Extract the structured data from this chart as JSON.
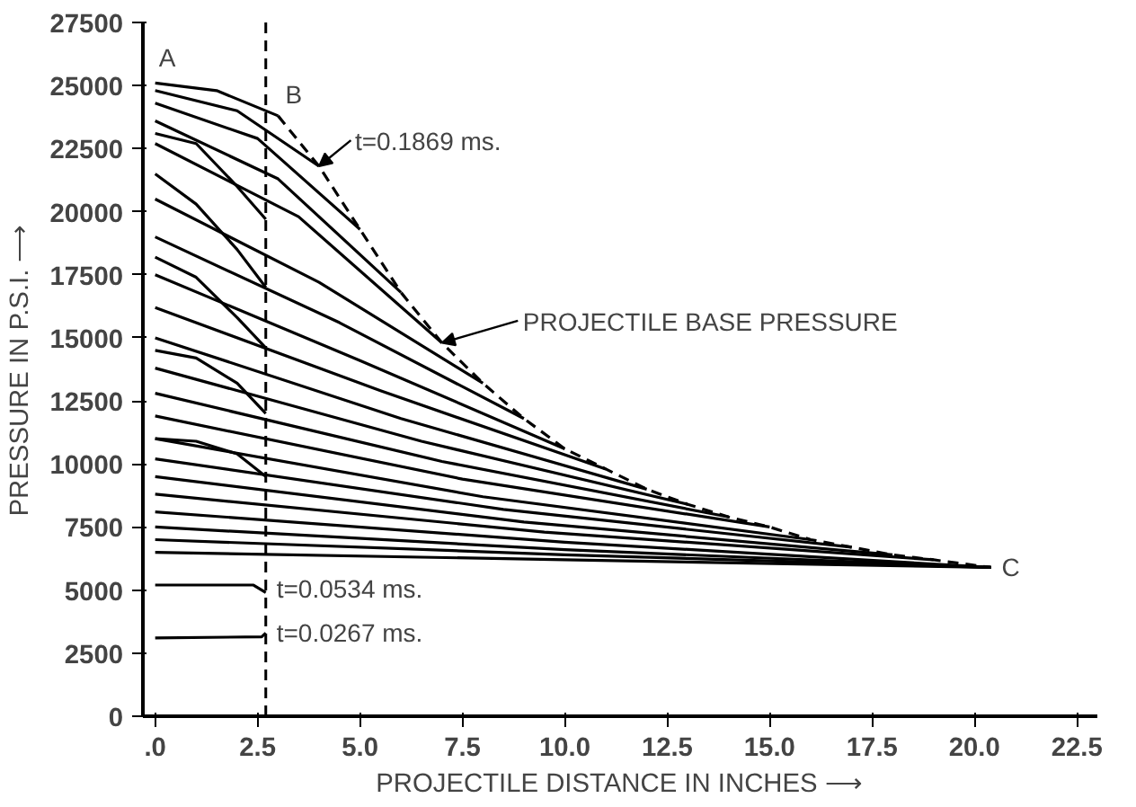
{
  "chart_data": {
    "type": "line",
    "xlabel": "PROJECTILE DISTANCE IN INCHES ⟶",
    "ylabel": "PRESSURE IN P.S.I. ⟶",
    "xlim": [
      -0.3,
      23
    ],
    "ylim": [
      0,
      27500
    ],
    "xticks": [
      {
        "value": 0,
        "label": ".0"
      },
      2.5,
      {
        "value": 5,
        "label": "5.0"
      },
      7.5,
      {
        "value": 10,
        "label": "10.0"
      },
      12.5,
      {
        "value": 15,
        "label": "15.0"
      },
      17.5,
      {
        "value": 20,
        "label": "20.0"
      },
      22.5
    ],
    "yticks": [
      0,
      2500,
      5000,
      7500,
      10000,
      12500,
      15000,
      17500,
      20000,
      22500,
      25000,
      27500
    ],
    "grid": false,
    "marker": "none",
    "line_style": "solid",
    "ref_lines": [
      {
        "axis": "x",
        "value": 2.7,
        "line_style": "dashed",
        "color": "#000000"
      }
    ],
    "annotations": [
      {
        "text": "A",
        "x": 0,
        "y": 25100
      },
      {
        "text": "B",
        "x": 3,
        "y": 23800
      },
      {
        "text": "C",
        "x": 20.4,
        "y": 5900
      },
      {
        "text": "t=0.1869 ms.",
        "x": 4,
        "y": 21800
      },
      {
        "text": "PROJECTILE BASE PRESSURE",
        "x": 7,
        "y": 14800
      },
      {
        "text": "t=0.0534 ms.",
        "x": 2.7,
        "y": 4900
      },
      {
        "text": "t=0.0267 ms.",
        "x": 2.7,
        "y": 3300
      }
    ],
    "series": [
      {
        "color": "#000000",
        "line_style": "dashed",
        "x": [
          3,
          4,
          5,
          6,
          7,
          8,
          9,
          10,
          11,
          12,
          13,
          14,
          15,
          16,
          17,
          18,
          19,
          20.4
        ],
        "values": [
          23800,
          21800,
          19300,
          16800,
          14800,
          13200,
          11800,
          10600,
          9800,
          9000,
          8400,
          7900,
          7500,
          7000,
          6700,
          6400,
          6200,
          5900
        ]
      },
      {
        "color": "#000000",
        "x": [
          0,
          2.6,
          2.7
        ],
        "values": [
          3100,
          3150,
          3300
        ]
      },
      {
        "color": "#000000",
        "x": [
          0,
          2.4,
          2.7
        ],
        "values": [
          5200,
          5200,
          4900
        ]
      },
      {
        "color": "#000000",
        "x": [
          0,
          1,
          2,
          2.7
        ],
        "values": [
          11000,
          10900,
          10400,
          9500
        ]
      },
      {
        "color": "#000000",
        "x": [
          0,
          1,
          2,
          2.7
        ],
        "values": [
          14500,
          14200,
          13200,
          12000
        ]
      },
      {
        "color": "#000000",
        "x": [
          0,
          1,
          2,
          2.7
        ],
        "values": [
          18200,
          17400,
          15800,
          14600
        ]
      },
      {
        "color": "#000000",
        "x": [
          0,
          1,
          2,
          2.7
        ],
        "values": [
          21500,
          20300,
          18500,
          17000
        ]
      },
      {
        "color": "#000000",
        "x": [
          0,
          1,
          2,
          2.7
        ],
        "values": [
          23100,
          22700,
          21000,
          19700
        ]
      },
      {
        "color": "#000000",
        "x": [
          0,
          1.5,
          3
        ],
        "values": [
          25100,
          24800,
          23800
        ]
      },
      {
        "color": "#000000",
        "x": [
          0,
          2,
          4
        ],
        "values": [
          24800,
          24000,
          21800
        ]
      },
      {
        "color": "#000000",
        "x": [
          0,
          2.5,
          5
        ],
        "values": [
          24300,
          22900,
          19300
        ]
      },
      {
        "color": "#000000",
        "x": [
          0,
          3,
          6
        ],
        "values": [
          23600,
          21300,
          16800
        ]
      },
      {
        "color": "#000000",
        "x": [
          0,
          3.5,
          7
        ],
        "values": [
          22700,
          19800,
          14800
        ]
      },
      {
        "color": "#000000",
        "x": [
          0,
          4,
          8
        ],
        "values": [
          20500,
          17200,
          13200
        ]
      },
      {
        "color": "#000000",
        "x": [
          0,
          4.5,
          9
        ],
        "values": [
          19000,
          15600,
          11800
        ]
      },
      {
        "color": "#000000",
        "x": [
          0,
          5,
          10
        ],
        "values": [
          17500,
          14100,
          10600
        ]
      },
      {
        "color": "#000000",
        "x": [
          0,
          5.5,
          11
        ],
        "values": [
          16200,
          12900,
          9800
        ]
      },
      {
        "color": "#000000",
        "x": [
          0,
          6,
          12
        ],
        "values": [
          15000,
          11800,
          9000
        ]
      },
      {
        "color": "#000000",
        "x": [
          0,
          6.5,
          13
        ],
        "values": [
          13800,
          10900,
          8400
        ]
      },
      {
        "color": "#000000",
        "x": [
          0,
          7,
          14
        ],
        "values": [
          12800,
          10100,
          7900
        ]
      },
      {
        "color": "#000000",
        "x": [
          0,
          7.5,
          15
        ],
        "values": [
          11900,
          9400,
          7500
        ]
      },
      {
        "color": "#000000",
        "x": [
          0,
          8,
          16
        ],
        "values": [
          11000,
          8700,
          7000
        ]
      },
      {
        "color": "#000000",
        "x": [
          0,
          8.5,
          17
        ],
        "values": [
          10200,
          8200,
          6700
        ]
      },
      {
        "color": "#000000",
        "x": [
          0,
          9,
          18
        ],
        "values": [
          9500,
          7700,
          6400
        ]
      },
      {
        "color": "#000000",
        "x": [
          0,
          9.5,
          19
        ],
        "values": [
          8800,
          7300,
          6200
        ]
      },
      {
        "color": "#000000",
        "x": [
          0,
          10,
          20.4
        ],
        "values": [
          8100,
          6900,
          5900
        ]
      },
      {
        "color": "#000000",
        "x": [
          0,
          10,
          20.4
        ],
        "values": [
          7500,
          6600,
          5900
        ]
      },
      {
        "color": "#000000",
        "x": [
          0,
          10,
          20.4
        ],
        "values": [
          7000,
          6400,
          5900
        ]
      },
      {
        "color": "#000000",
        "x": [
          0,
          10,
          20.4
        ],
        "values": [
          6500,
          6200,
          5900
        ]
      }
    ]
  }
}
